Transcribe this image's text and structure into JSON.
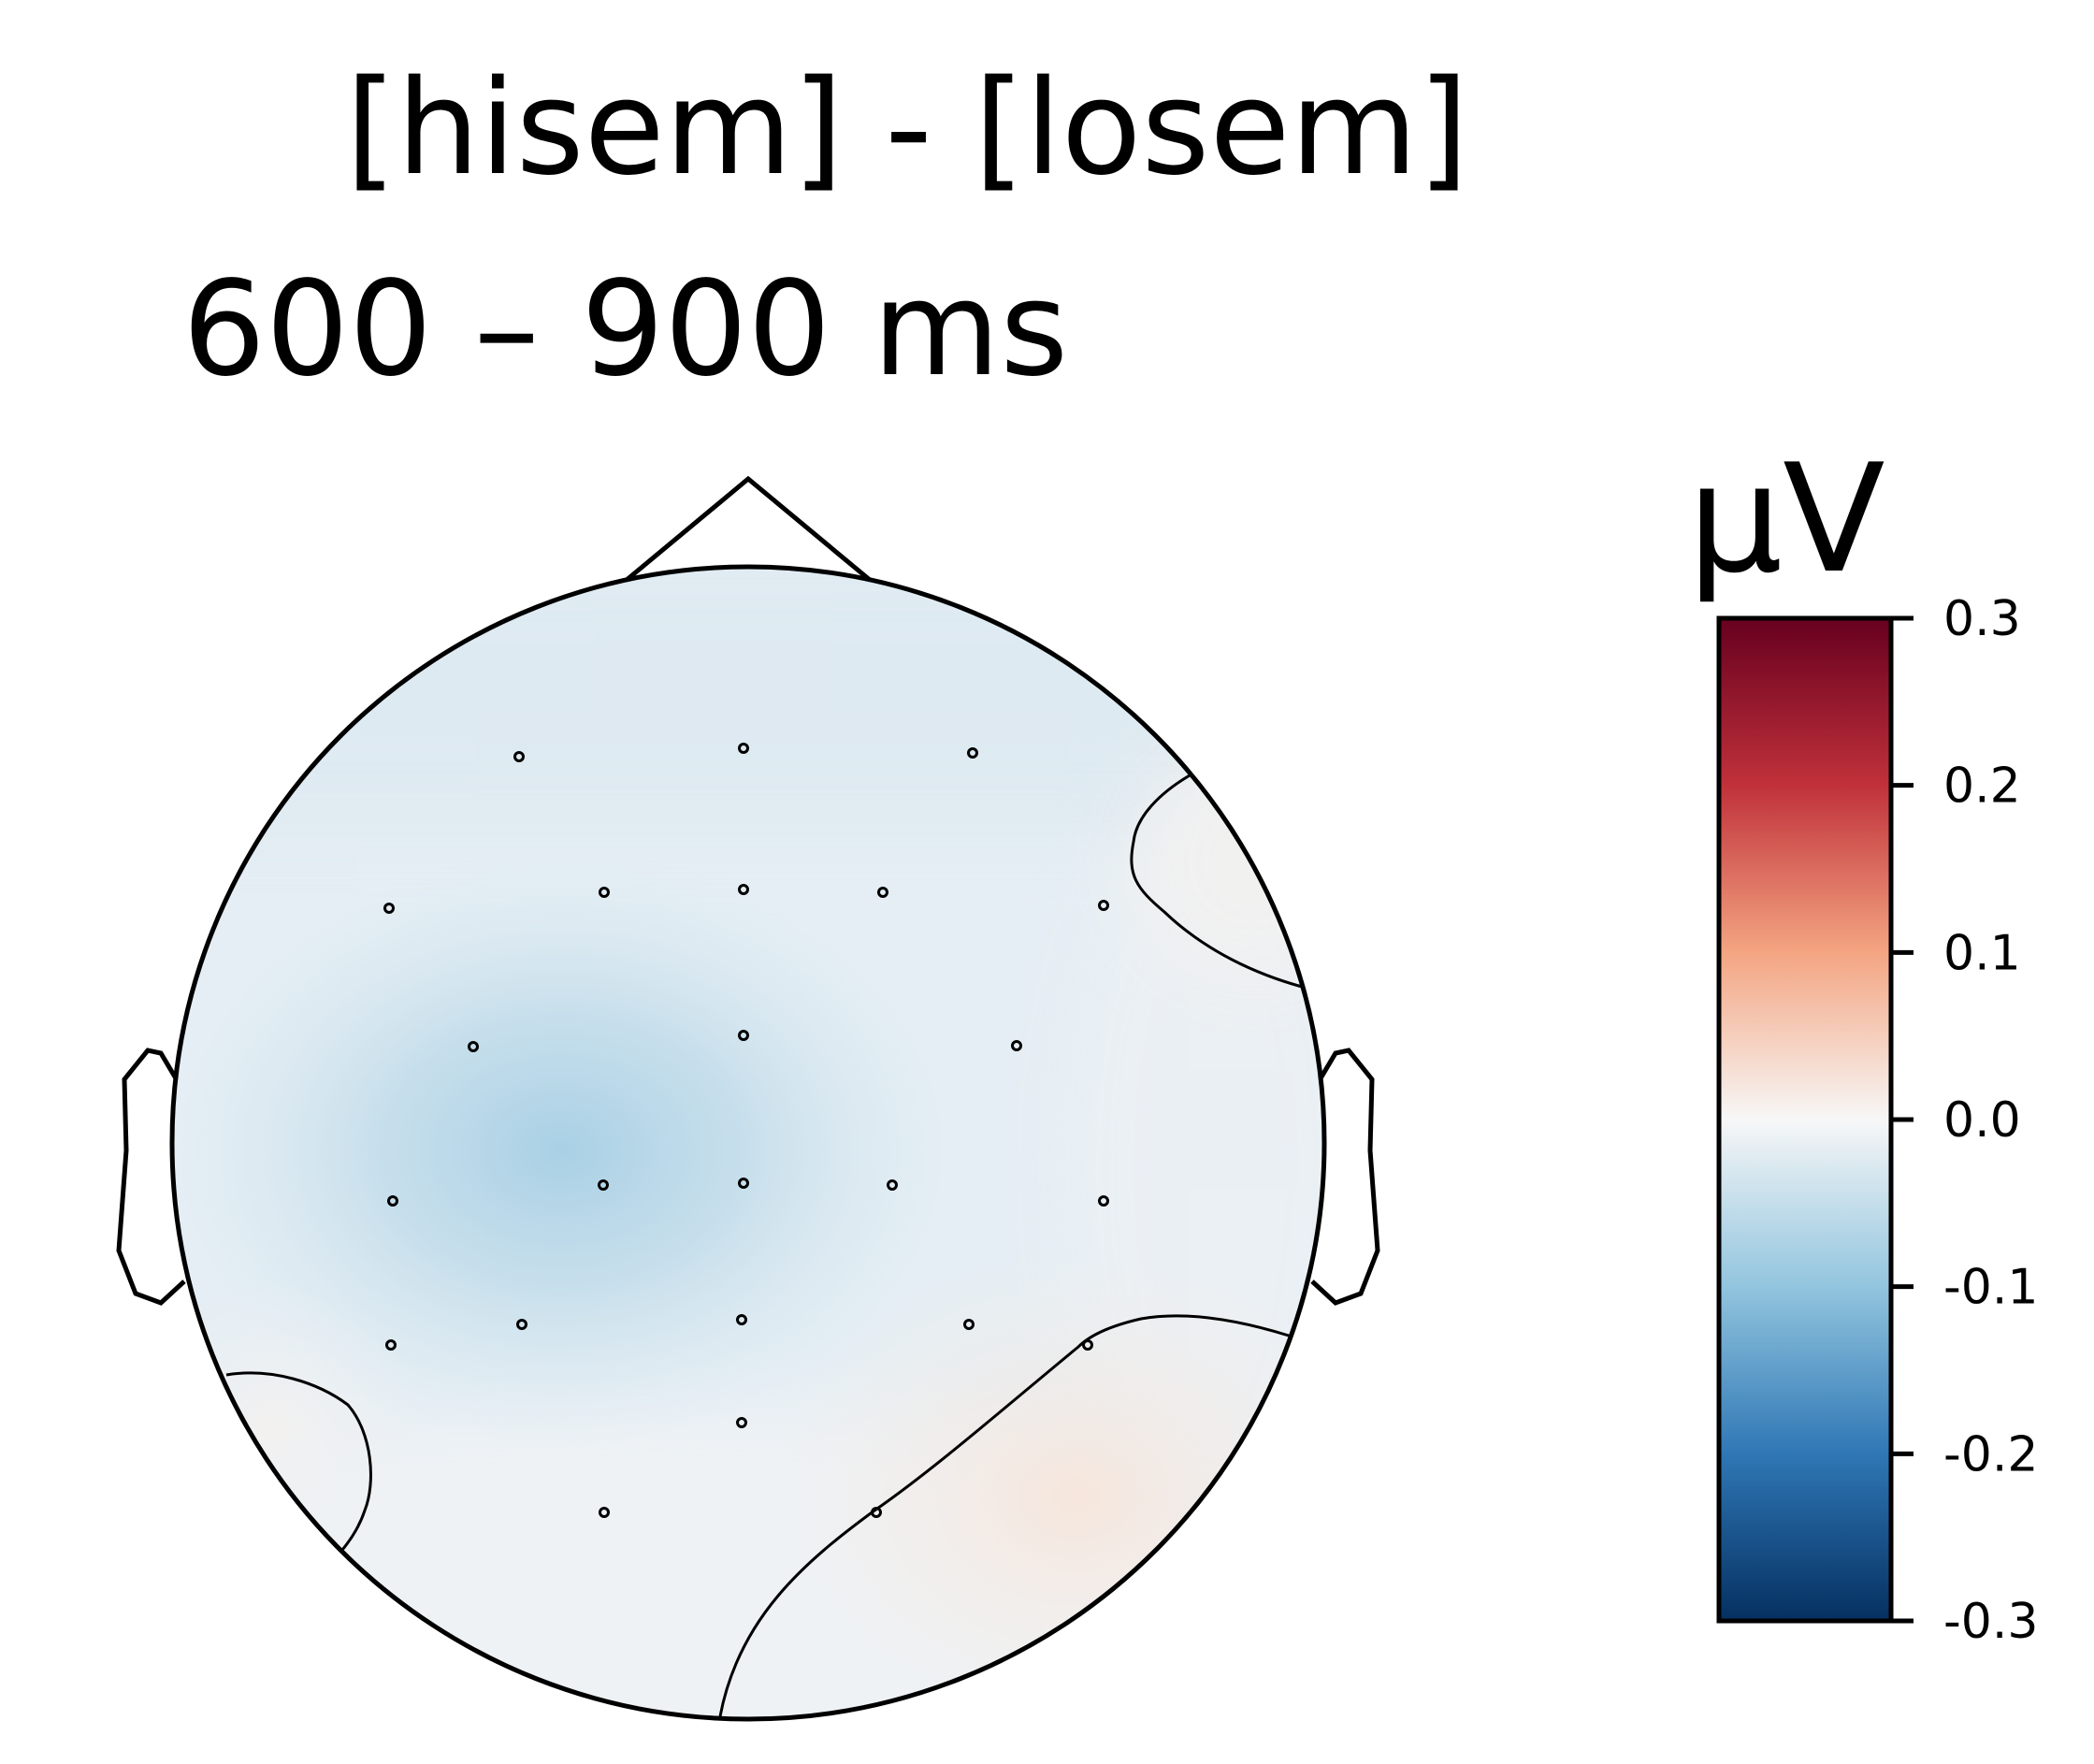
{
  "chart_data": {
    "type": "heatmap",
    "title": "[hisem] - [losem]",
    "subtitle": "600 – 900 ms",
    "colorbar": {
      "label": "µV",
      "colormap": "RdBu_r",
      "vmin": -0.3,
      "vmax": 0.3,
      "ticks": [
        0.3,
        0.2,
        0.1,
        0.0,
        -0.1,
        -0.2,
        -0.3
      ],
      "tick_labels": [
        "0.3",
        "0.2",
        "0.1",
        "0.0",
        "-0.1",
        "-0.2",
        "-0.3"
      ],
      "stops": [
        {
          "v": 0.3,
          "color": "#67001f"
        },
        {
          "v": 0.2,
          "color": "#c0313a"
        },
        {
          "v": 0.1,
          "color": "#f4a582"
        },
        {
          "v": 0.0,
          "color": "#f7f7f7"
        },
        {
          "v": -0.1,
          "color": "#92c5de"
        },
        {
          "v": -0.2,
          "color": "#2f77b5"
        },
        {
          "v": -0.3,
          "color": "#053061"
        }
      ]
    },
    "contour_levels": [
      0.0
    ],
    "approx_values": {
      "left_center_minimum": -0.06,
      "right_frontal": 0.01,
      "right_occipital": 0.02,
      "left_occipital": 0.01
    },
    "grid": false
  }
}
